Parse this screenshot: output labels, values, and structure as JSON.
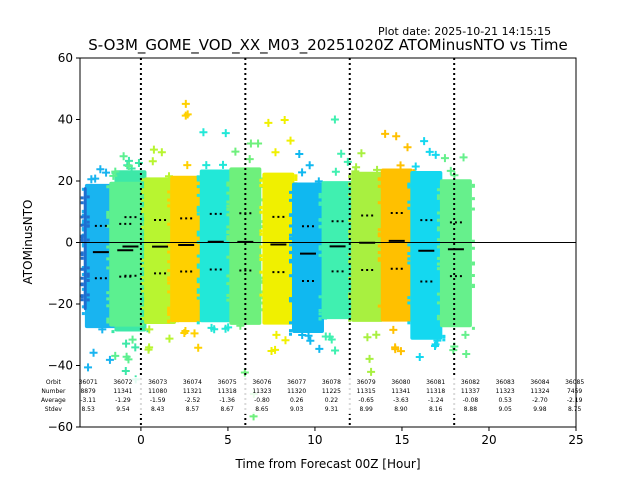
{
  "chart_data": {
    "type": "scatter",
    "title": "S-O3M_GOME_VOD_XX_M03_20251020Z ATOMinusNTO vs Time",
    "subtitle": "Plot date: 2025-10-21 14:15:15",
    "xlabel": "Time from Forecast 00Z [Hour]",
    "ylabel": "ATOMinusNTO",
    "xlim": [
      -3.5,
      25
    ],
    "ylim": [
      -60,
      60
    ],
    "xticks": [
      0,
      5,
      10,
      15,
      20,
      25
    ],
    "yticks": [
      -60,
      -40,
      -20,
      0,
      20,
      40,
      60
    ],
    "grid": false,
    "zero_line": 0,
    "forecast_markers": [
      0,
      6,
      12,
      18
    ],
    "stats_row_labels": [
      "Orbit",
      "Number",
      "Average",
      "Stdev"
    ],
    "orbits": [
      {
        "orbit": "36071",
        "number": "8879",
        "average": -3.11,
        "stdev": 8.53,
        "time": -2.3,
        "color": "#19b4f0",
        "min": -47,
        "max": 25
      },
      {
        "orbit": "36072",
        "number": "11341",
        "average": -1.29,
        "stdev": 9.54,
        "time": -0.6,
        "color": "#3de8a8",
        "min": -45,
        "max": 28
      },
      {
        "orbit": "36073",
        "number": "11080",
        "average": -1.59,
        "stdev": 8.43,
        "time": -3.2,
        "color": "#1f6fd0",
        "min": -22,
        "max": 18
      },
      {
        "orbit": "36074",
        "number": "11321",
        "average": -2.52,
        "stdev": 8.57,
        "time": -0.9,
        "color": "#5cf090",
        "min": -44,
        "max": 30
      },
      {
        "orbit": "36075",
        "number": "11318",
        "average": -1.36,
        "stdev": 8.67,
        "time": 1.1,
        "color": "#b8f530",
        "min": -38,
        "max": 35
      },
      {
        "orbit": "36076",
        "number": "11323",
        "average": -0.8,
        "stdev": 8.65,
        "time": 2.6,
        "color": "#ffd000",
        "min": -35,
        "max": 46
      },
      {
        "orbit": "36077",
        "number": "11320",
        "average": 0.26,
        "stdev": 9.03,
        "time": 4.3,
        "color": "#22e8d8",
        "min": -31,
        "max": 44
      },
      {
        "orbit": "36078",
        "number": "11225",
        "average": 0.22,
        "stdev": 9.31,
        "time": 6.0,
        "color": "#6ef07c",
        "min": -60,
        "max": 40
      },
      {
        "orbit": "36079",
        "number": "11315",
        "average": -0.65,
        "stdev": 8.99,
        "time": 7.9,
        "color": "#f0f000",
        "min": -36,
        "max": 42
      },
      {
        "orbit": "36080",
        "number": "11341",
        "average": -3.63,
        "stdev": 8.9,
        "time": 9.6,
        "color": "#10b8f0",
        "min": -38,
        "max": 30
      },
      {
        "orbit": "36081",
        "number": "11318",
        "average": -1.24,
        "stdev": 8.16,
        "time": 11.3,
        "color": "#40f0b0",
        "min": -37,
        "max": 41
      },
      {
        "orbit": "36082",
        "number": "11337",
        "average": -0.08,
        "stdev": 8.88,
        "time": 13.0,
        "color": "#a8f040",
        "min": -44,
        "max": 31
      },
      {
        "orbit": "36083",
        "number": "11323",
        "average": 0.53,
        "stdev": 9.05,
        "time": 14.7,
        "color": "#ffc000",
        "min": -39,
        "max": 41
      },
      {
        "orbit": "36084",
        "number": "11324",
        "average": -2.7,
        "stdev": 9.98,
        "time": 16.4,
        "color": "#14d8f0",
        "min": -40,
        "max": 37
      },
      {
        "orbit": "36085",
        "number": "7459",
        "average": -2.19,
        "stdev": 8.75,
        "time": 18.1,
        "color": "#66f08c",
        "min": -43,
        "max": 28
      }
    ]
  }
}
